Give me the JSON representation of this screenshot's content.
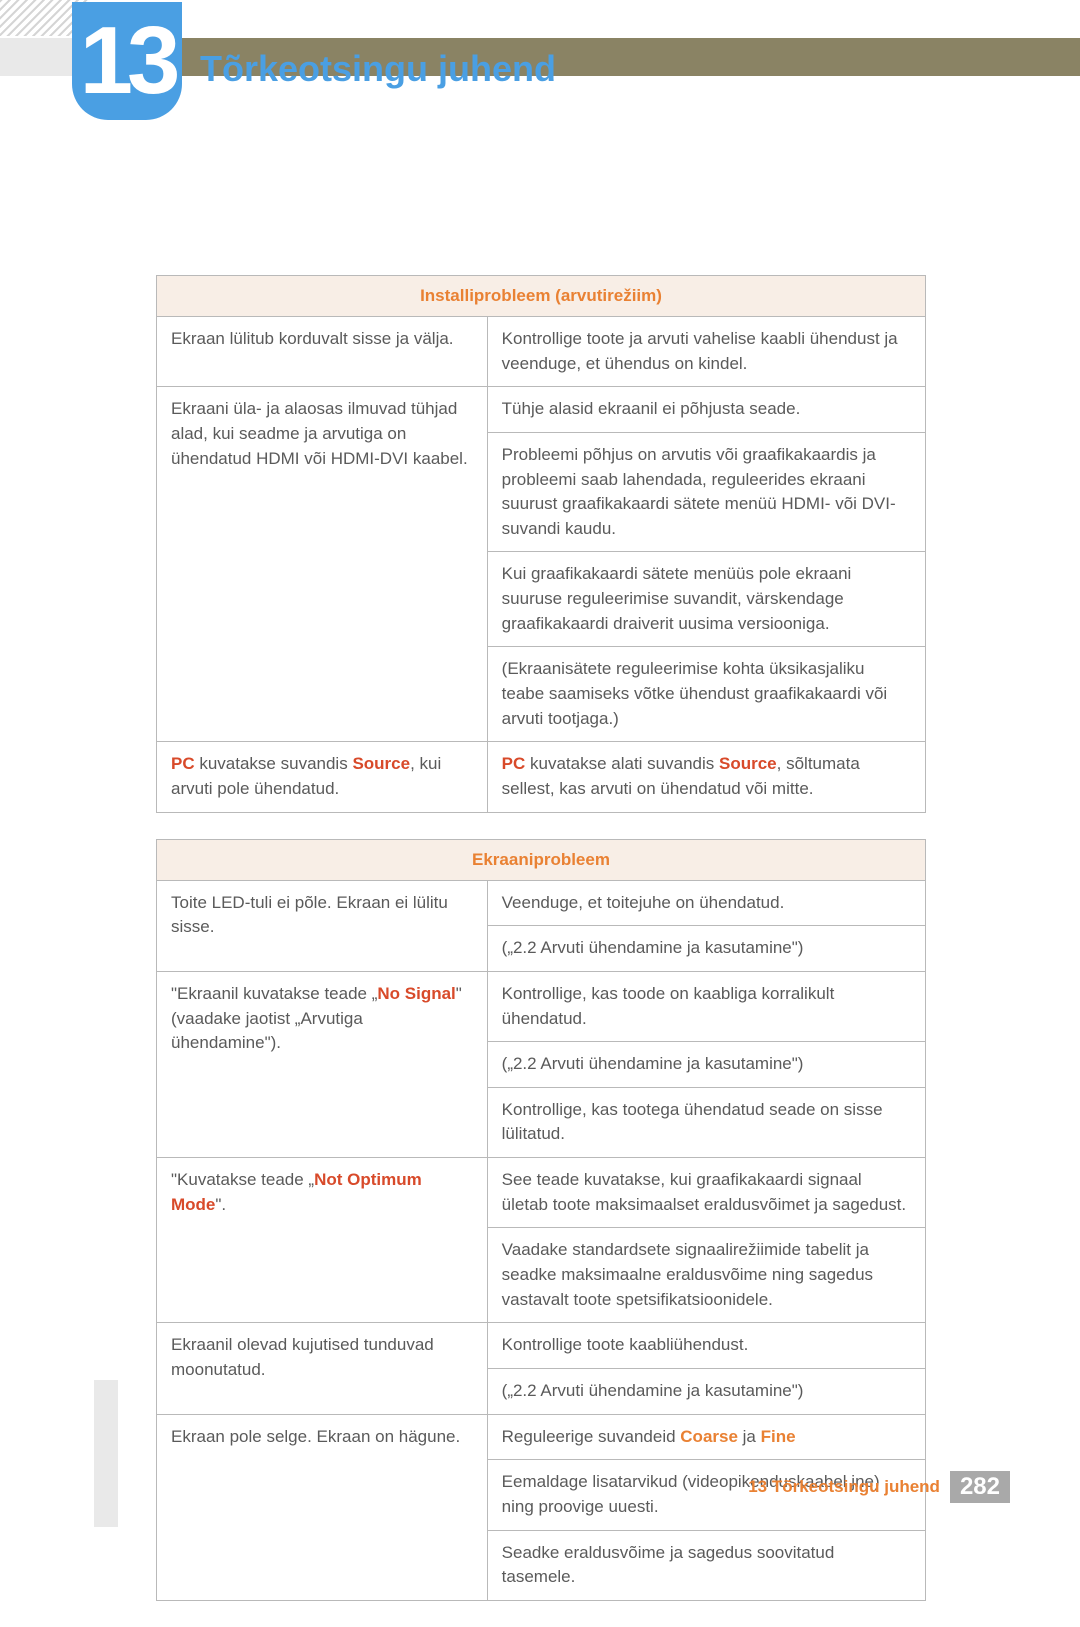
{
  "chapter": {
    "number": "13",
    "title": "Tõrkeotsingu juhend"
  },
  "footer": {
    "text": "13 Tõrkeotsingu juhend",
    "page": "282"
  },
  "colors": {
    "accent_blue": "#4a9fe3",
    "accent_orange": "#e98133",
    "accent_red": "#d84a2a",
    "header_bg": "#f8eee6",
    "border": "#b9b9b9",
    "band": "#8a8364",
    "text": "#5a5a5a"
  },
  "tables": [
    {
      "header": "Installiprobleem (arvutirežiim)",
      "rows": [
        {
          "left": "Ekraan lülitub korduvalt sisse ja välja.",
          "right": [
            "Kontrollige toote ja arvuti vahelise kaabli ühendust ja veenduge, et ühendus on kindel."
          ],
          "left_rowspan": 1
        },
        {
          "left": "Ekraani üla- ja alaosas ilmuvad tühjad alad, kui seadme ja arvutiga on ühendatud HDMI või HDMI-DVI kaabel.",
          "right": [
            "Tühje alasid ekraanil ei põhjusta seade.",
            "Probleemi põhjus on arvutis või graafikakaardis ja probleemi saab lahendada, reguleerides ekraani suurust graafikakaardi sätete menüü HDMI- või DVI-suvandi kaudu.",
            "Kui graafikakaardi sätete menüüs pole ekraani suuruse reguleerimise suvandit, värskendage graafikakaardi draiverit uusima versiooniga.",
            "(Ekraanisätete reguleerimise kohta üksikasjaliku teabe saamiseks võtke ühendust graafikakaardi või arvuti tootjaga.)"
          ],
          "left_rowspan": 4
        },
        {
          "left_html": "<span class='hl-red'>PC</span> kuvatakse suvandis <span class='hl-red'>Source</span>, kui arvuti pole ühendatud.",
          "right_html": [
            "<span class='hl-red'>PC</span> kuvatakse alati suvandis <span class='hl-red'>Source</span>, sõltumata sellest, kas arvuti on ühendatud või mitte."
          ],
          "left_rowspan": 1
        }
      ]
    },
    {
      "header": "Ekraaniprobleem",
      "rows": [
        {
          "left": "Toite LED-tuli ei põle. Ekraan ei lülitu sisse.",
          "right": [
            "Veenduge, et toitejuhe on ühendatud.",
            "(„2.2 Arvuti ühendamine ja kasutamine\")"
          ],
          "left_rowspan": 2
        },
        {
          "left_html": "\"Ekraanil kuvatakse teade „<span class='hl-red'>No Signal</span>\" (vaadake jaotist „Arvutiga ühendamine\").",
          "right": [
            "Kontrollige, kas toode on kaabliga korralikult ühendatud.",
            "(„2.2 Arvuti ühendamine ja kasutamine\")",
            "Kontrollige, kas tootega ühendatud seade on sisse lülitatud."
          ],
          "left_rowspan": 3
        },
        {
          "left_html": "\"Kuvatakse teade „<span class='hl-red'>Not Optimum Mode</span>\".",
          "right": [
            "See teade kuvatakse, kui graafikakaardi signaal ületab toote maksimaalset eraldusvõimet ja sagedust.",
            "Vaadake standardsete signaalirežiimide tabelit ja seadke maksimaalne eraldusvõime ning sagedus vastavalt toote spetsifikatsioonidele."
          ],
          "left_rowspan": 2
        },
        {
          "left": "Ekraanil olevad kujutised tunduvad moonutatud.",
          "right": [
            "Kontrollige toote kaabliühendust.",
            "(„2.2 Arvuti ühendamine ja kasutamine\")"
          ],
          "left_rowspan": 2
        },
        {
          "left": "Ekraan pole selge. Ekraan on hägune.",
          "right_html": [
            "Reguleerige suvandeid <span class='hl-orange'>Coarse</span> ja <span class='hl-orange'>Fine</span>",
            "Eemaldage lisatarvikud (videopikenduskaabel jne) ning proovige uuesti.",
            "Seadke eraldusvõime ja sagedus soovitatud tasemele."
          ],
          "left_rowspan": 3
        }
      ]
    }
  ]
}
